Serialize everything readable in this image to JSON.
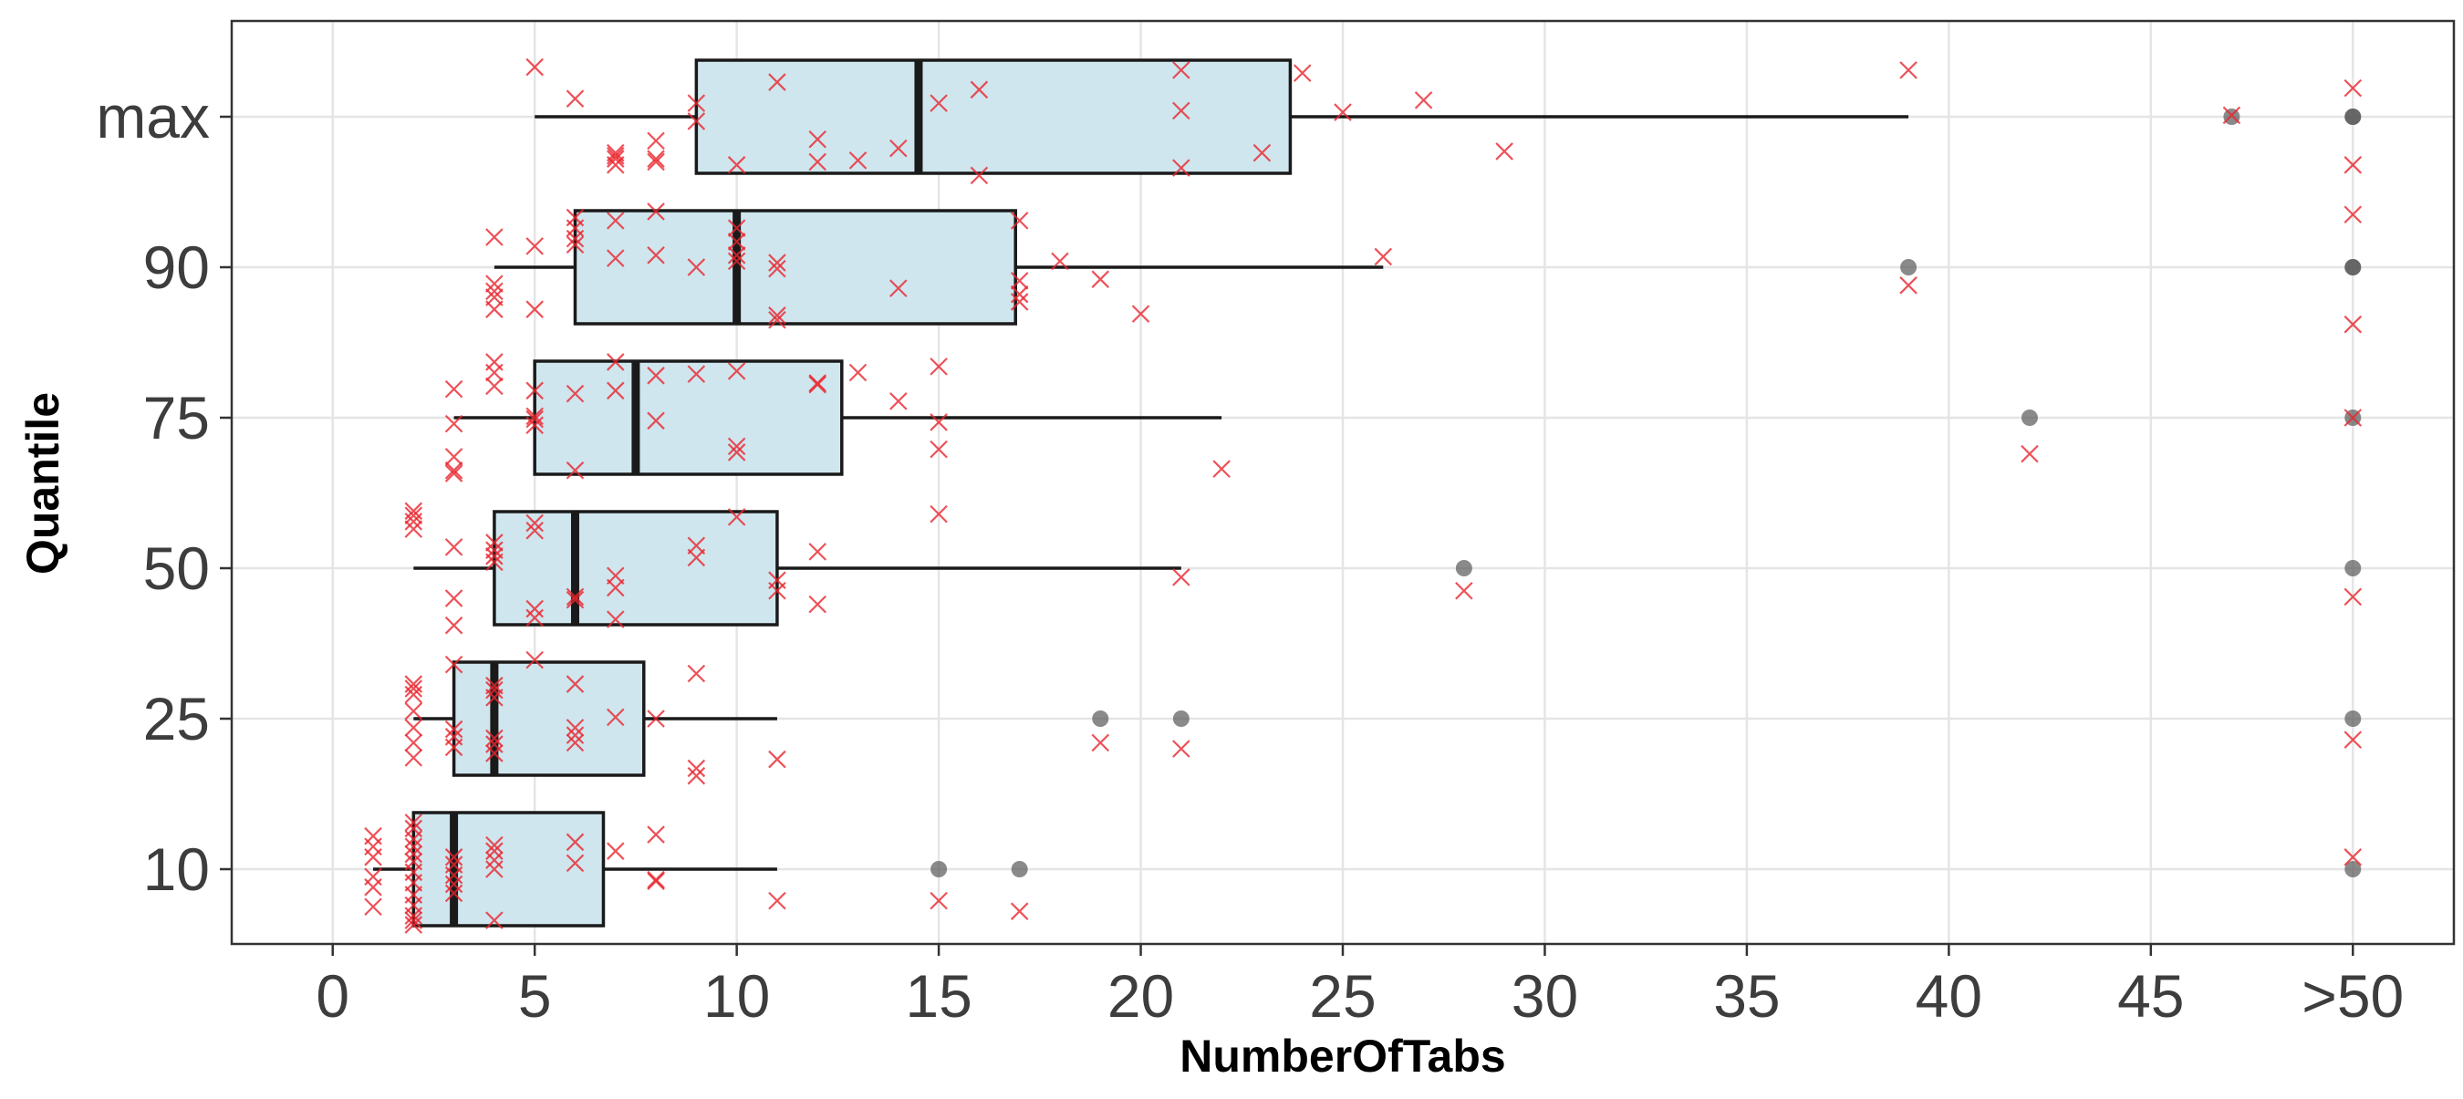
{
  "chart_data": {
    "type": "boxplot",
    "xlabel": "NumberOfTabs",
    "ylabel": "Quantile",
    "xlim": [
      -2.5,
      52.5
    ],
    "x_ticks": [
      0,
      5,
      10,
      15,
      20,
      25,
      30,
      35,
      40,
      45,
      50
    ],
    "x_tick_labels": [
      "0",
      "5",
      "10",
      "15",
      "20",
      "25",
      "30",
      "35",
      "40",
      "45",
      ">50"
    ],
    "categories": [
      "10",
      "25",
      "50",
      "75",
      "90",
      "max"
    ],
    "grid": true,
    "colors": {
      "box_fill": "#cfe6ee",
      "box_stroke": "#1a1a1a",
      "jitter": "#e8252e",
      "outlier": "#595959",
      "grid": "#e5e5e5",
      "panel_border": "#333333"
    },
    "boxes": [
      {
        "category": "10",
        "whisker_low": 1,
        "q1": 2,
        "median": 3,
        "q3": 6.7,
        "whisker_high": 11
      },
      {
        "category": "25",
        "whisker_low": 2,
        "q1": 3,
        "median": 4,
        "q3": 7.7,
        "whisker_high": 11
      },
      {
        "category": "50",
        "whisker_low": 2,
        "q1": 4,
        "median": 6,
        "q3": 11,
        "whisker_high": 21
      },
      {
        "category": "75",
        "whisker_low": 3,
        "q1": 5,
        "median": 7.5,
        "q3": 12.6,
        "whisker_high": 22
      },
      {
        "category": "90",
        "whisker_low": 4,
        "q1": 6,
        "median": 10,
        "q3": 16.9,
        "whisker_high": 26
      },
      {
        "category": "max",
        "whisker_low": 5,
        "q1": 9,
        "median": 14.5,
        "q3": 23.7,
        "whisker_high": 39
      }
    ],
    "outliers": [
      {
        "category": "10",
        "x": [
          15,
          17,
          50
        ]
      },
      {
        "category": "25",
        "x": [
          19,
          21,
          50
        ]
      },
      {
        "category": "50",
        "x": [
          28,
          50
        ]
      },
      {
        "category": "75",
        "x": [
          42,
          50
        ]
      },
      {
        "category": "90",
        "x": [
          39,
          50,
          50
        ]
      },
      {
        "category": "max",
        "x": [
          47,
          50,
          50
        ]
      }
    ],
    "jitter_points": [
      {
        "category": "10",
        "points": [
          [
            1,
            0.22
          ],
          [
            1,
            0.15
          ],
          [
            1,
            0.08
          ],
          [
            1,
            -0.05
          ],
          [
            1,
            -0.12
          ],
          [
            1,
            -0.25
          ],
          [
            2,
            0.31
          ],
          [
            2,
            0.27
          ],
          [
            2,
            0.2
          ],
          [
            2,
            0.15
          ],
          [
            2,
            0.1
          ],
          [
            2,
            0.05
          ],
          [
            2,
            -0.02
          ],
          [
            2,
            -0.09
          ],
          [
            2,
            -0.17
          ],
          [
            2,
            -0.24
          ],
          [
            2,
            -0.31
          ],
          [
            2,
            -0.34
          ],
          [
            2,
            -0.37
          ],
          [
            3,
            0.08
          ],
          [
            3,
            0.03
          ],
          [
            3,
            -0.04
          ],
          [
            3,
            -0.1
          ],
          [
            3,
            -0.16
          ],
          [
            4,
            -0.34
          ],
          [
            4,
            0.16
          ],
          [
            4,
            0.12
          ],
          [
            4,
            0.06
          ],
          [
            4,
            0.0
          ],
          [
            6,
            0.18
          ],
          [
            6,
            0.04
          ],
          [
            7,
            0.12
          ],
          [
            8,
            0.23
          ],
          [
            8,
            -0.07
          ],
          [
            8,
            -0.08
          ],
          [
            11,
            -0.21
          ],
          [
            15,
            -0.21
          ],
          [
            17,
            -0.28
          ],
          [
            50,
            0.08
          ]
        ]
      },
      {
        "category": "25",
        "points": [
          [
            2,
            0.23
          ],
          [
            2,
            0.2
          ],
          [
            2,
            0.16
          ],
          [
            2,
            0.05
          ],
          [
            2,
            -0.06
          ],
          [
            2,
            -0.16
          ],
          [
            2,
            -0.26
          ],
          [
            3,
            0.36
          ],
          [
            3,
            -0.07
          ],
          [
            3,
            -0.12
          ],
          [
            3,
            -0.19
          ],
          [
            4,
            0.22
          ],
          [
            4,
            0.19
          ],
          [
            4,
            0.14
          ],
          [
            4,
            -0.13
          ],
          [
            4,
            -0.17
          ],
          [
            4,
            -0.23
          ],
          [
            5,
            0.39
          ],
          [
            6,
            0.23
          ],
          [
            6,
            -0.06
          ],
          [
            6,
            -0.11
          ],
          [
            6,
            -0.16
          ],
          [
            7,
            0.01
          ],
          [
            8,
            0.0
          ],
          [
            9,
            0.3
          ],
          [
            9,
            -0.33
          ],
          [
            9,
            -0.38
          ],
          [
            11,
            -0.27
          ],
          [
            19,
            -0.16
          ],
          [
            21,
            -0.2
          ],
          [
            50,
            -0.14
          ]
        ]
      },
      {
        "category": "50",
        "points": [
          [
            2,
            0.38
          ],
          [
            2,
            0.35
          ],
          [
            2,
            0.31
          ],
          [
            2,
            0.26
          ],
          [
            3,
            0.14
          ],
          [
            3,
            -0.2
          ],
          [
            3,
            -0.38
          ],
          [
            4,
            0.17
          ],
          [
            4,
            0.12
          ],
          [
            4,
            0.08
          ],
          [
            4,
            0.04
          ],
          [
            5,
            0.3
          ],
          [
            5,
            0.25
          ],
          [
            5,
            -0.27
          ],
          [
            5,
            -0.33
          ],
          [
            6,
            -0.19
          ],
          [
            6,
            -0.21
          ],
          [
            7,
            -0.05
          ],
          [
            7,
            -0.13
          ],
          [
            7,
            -0.34
          ],
          [
            9,
            0.15
          ],
          [
            9,
            0.07
          ],
          [
            10,
            0.34
          ],
          [
            11,
            -0.08
          ],
          [
            11,
            -0.15
          ],
          [
            12,
            0.11
          ],
          [
            12,
            -0.24
          ],
          [
            15,
            0.36
          ],
          [
            21,
            -0.06
          ],
          [
            28,
            -0.15
          ],
          [
            50,
            -0.19
          ]
        ]
      },
      {
        "category": "75",
        "points": [
          [
            3,
            0.19
          ],
          [
            3,
            -0.04
          ],
          [
            3,
            -0.26
          ],
          [
            3,
            -0.35
          ],
          [
            3,
            -0.37
          ],
          [
            4,
            0.37
          ],
          [
            4,
            0.3
          ],
          [
            4,
            0.21
          ],
          [
            5,
            0.18
          ],
          [
            5,
            0.01
          ],
          [
            5,
            -0.01
          ],
          [
            5,
            -0.05
          ],
          [
            6,
            0.16
          ],
          [
            6,
            -0.35
          ],
          [
            7,
            0.37
          ],
          [
            7,
            0.18
          ],
          [
            8,
            0.28
          ],
          [
            8,
            -0.02
          ],
          [
            9,
            0.29
          ],
          [
            10,
            0.31
          ],
          [
            10,
            -0.19
          ],
          [
            10,
            -0.23
          ],
          [
            12,
            0.23
          ],
          [
            12,
            0.22
          ],
          [
            13,
            0.3
          ],
          [
            14,
            0.11
          ],
          [
            15,
            0.34
          ],
          [
            15,
            -0.03
          ],
          [
            15,
            -0.21
          ],
          [
            22,
            -0.34
          ],
          [
            42,
            -0.24
          ],
          [
            50,
            0.0
          ]
        ]
      },
      {
        "category": "90",
        "points": [
          [
            4,
            0.2
          ],
          [
            4,
            -0.11
          ],
          [
            4,
            -0.16
          ],
          [
            4,
            -0.2
          ],
          [
            4,
            -0.28
          ],
          [
            5,
            0.14
          ],
          [
            5,
            -0.28
          ],
          [
            6,
            0.33
          ],
          [
            6,
            0.26
          ],
          [
            6,
            0.19
          ],
          [
            6,
            0.15
          ],
          [
            7,
            0.31
          ],
          [
            7,
            0.06
          ],
          [
            8,
            0.37
          ],
          [
            8,
            0.08
          ],
          [
            9,
            0.0
          ],
          [
            10,
            0.26
          ],
          [
            10,
            0.17
          ],
          [
            10,
            0.08
          ],
          [
            10,
            0.04
          ],
          [
            11,
            0.03
          ],
          [
            11,
            -0.01
          ],
          [
            11,
            -0.32
          ],
          [
            11,
            -0.35
          ],
          [
            14,
            -0.14
          ],
          [
            17,
            0.31
          ],
          [
            17,
            -0.09
          ],
          [
            17,
            -0.18
          ],
          [
            17,
            -0.23
          ],
          [
            18,
            0.04
          ],
          [
            19,
            -0.08
          ],
          [
            20,
            -0.31
          ],
          [
            26,
            0.07
          ],
          [
            39,
            -0.12
          ],
          [
            50,
            0.68
          ],
          [
            50,
            0.35
          ],
          [
            50,
            -0.38
          ]
        ]
      },
      {
        "category": "max",
        "points": [
          [
            5,
            0.33
          ],
          [
            6,
            0.12
          ],
          [
            7,
            -0.24
          ],
          [
            7,
            -0.26
          ],
          [
            7,
            -0.28
          ],
          [
            7,
            -0.32
          ],
          [
            8,
            -0.16
          ],
          [
            8,
            -0.28
          ],
          [
            8,
            -0.3
          ],
          [
            9,
            0.09
          ],
          [
            9,
            -0.03
          ],
          [
            10,
            -0.32
          ],
          [
            11,
            0.23
          ],
          [
            12,
            -0.15
          ],
          [
            12,
            -0.3
          ],
          [
            13,
            -0.29
          ],
          [
            14,
            -0.21
          ],
          [
            15,
            0.09
          ],
          [
            16,
            0.18
          ],
          [
            16,
            -0.39
          ],
          [
            21,
            0.31
          ],
          [
            21,
            0.04
          ],
          [
            21,
            -0.34
          ],
          [
            23,
            -0.24
          ],
          [
            24,
            0.29
          ],
          [
            25,
            0.03
          ],
          [
            27,
            0.11
          ],
          [
            29,
            -0.23
          ],
          [
            39,
            0.31
          ],
          [
            47,
            0.01
          ],
          [
            50,
            0.19
          ]
        ]
      }
    ]
  }
}
